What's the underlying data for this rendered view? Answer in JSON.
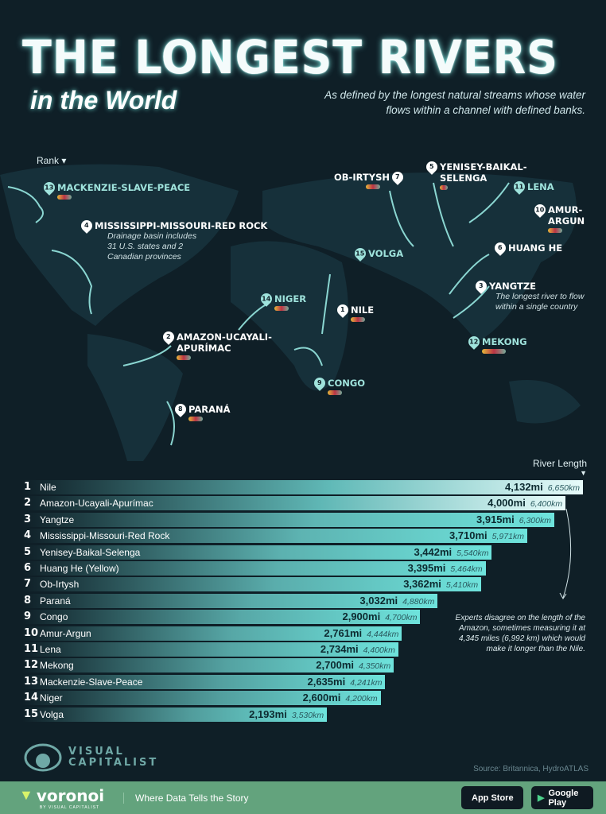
{
  "header": {
    "title": "THE LONGEST RIVERS",
    "subtitle": "in the World",
    "description": "As defined by the longest natural streams whose water flows within a channel with defined banks."
  },
  "map": {
    "rank_label": "Rank",
    "markers": [
      {
        "rank": "13",
        "name": "MACKENZIE-SLAVE-PEACE"
      },
      {
        "rank": "4",
        "name": "MISSISSIPPI-MISSOURI-RED ROCK",
        "note": "Drainage basin includes 31 U.S. states and 2 Canadian provinces"
      },
      {
        "rank": "7",
        "name": "OB-IRTYSH"
      },
      {
        "rank": "5",
        "name": "YENISEY-BAIKAL-SELENGA"
      },
      {
        "rank": "11",
        "name": "LENA"
      },
      {
        "rank": "10",
        "name": "AMUR-ARGUN"
      },
      {
        "rank": "6",
        "name": "HUANG HE"
      },
      {
        "rank": "15",
        "name": "VOLGA"
      },
      {
        "rank": "3",
        "name": "YANGTZE",
        "note": "The longest river to flow within a single country"
      },
      {
        "rank": "14",
        "name": "NIGER"
      },
      {
        "rank": "1",
        "name": "NILE"
      },
      {
        "rank": "2",
        "name": "AMAZON-UCAYALI-APURÍMAC"
      },
      {
        "rank": "12",
        "name": "MEKONG"
      },
      {
        "rank": "9",
        "name": "CONGO"
      },
      {
        "rank": "8",
        "name": "PARANÁ"
      }
    ]
  },
  "chart_data": {
    "type": "bar",
    "orientation": "horizontal",
    "ylabel": "River Length",
    "categories": [
      "Nile",
      "Amazon-Ucayali-Apurímac",
      "Yangtze",
      "Mississippi-Missouri-Red Rock",
      "Yenisey-Baikal-Selenga",
      "Huang He (Yellow)",
      "Ob-Irtysh",
      "Paraná",
      "Congo",
      "Amur-Argun",
      "Lena",
      "Mekong",
      "Mackenzie-Slave-Peace",
      "Niger",
      "Volga"
    ],
    "ranks": [
      "1",
      "2",
      "3",
      "4",
      "5",
      "6",
      "7",
      "8",
      "9",
      "10",
      "11",
      "12",
      "13",
      "14",
      "15"
    ],
    "values_mi": [
      4132,
      4000,
      3915,
      3710,
      3442,
      3395,
      3362,
      3032,
      2900,
      2761,
      2734,
      2700,
      2635,
      2600,
      2193
    ],
    "labels_mi": [
      "4,132mi",
      "4,000mi",
      "3,915mi",
      "3,710mi",
      "3,442mi",
      "3,395mi",
      "3,362mi",
      "3,032mi",
      "2,900mi",
      "2,761mi",
      "2,734mi",
      "2,700mi",
      "2,635mi",
      "2,600mi",
      "2,193mi"
    ],
    "labels_km": [
      "6,650km",
      "6,400km",
      "6,300km",
      "5,971km",
      "5,540km",
      "5,464km",
      "5,410km",
      "4,880km",
      "4,700km",
      "4,444km",
      "4,400km",
      "4,350km",
      "4,241km",
      "4,200km",
      "3,530km"
    ],
    "annotation": "Experts disagree on the length of the Amazon, sometimes measuring it at 4,345 miles (6,992 km) which would make it longer than the Nile."
  },
  "footer": {
    "brand": "VISUAL CAPITALIST",
    "source": "Source: Britannica, HydroATLAS",
    "voronoi": "voronoi",
    "voronoi_sub": "BY VISUAL CAPITALIST",
    "tagline": "Where Data Tells the Story",
    "app_store": "App Store",
    "google_play": "Google Play"
  },
  "colors": {
    "background": "#0f1f27",
    "accent": "#7ee6e0",
    "footer": "#63a37d"
  }
}
